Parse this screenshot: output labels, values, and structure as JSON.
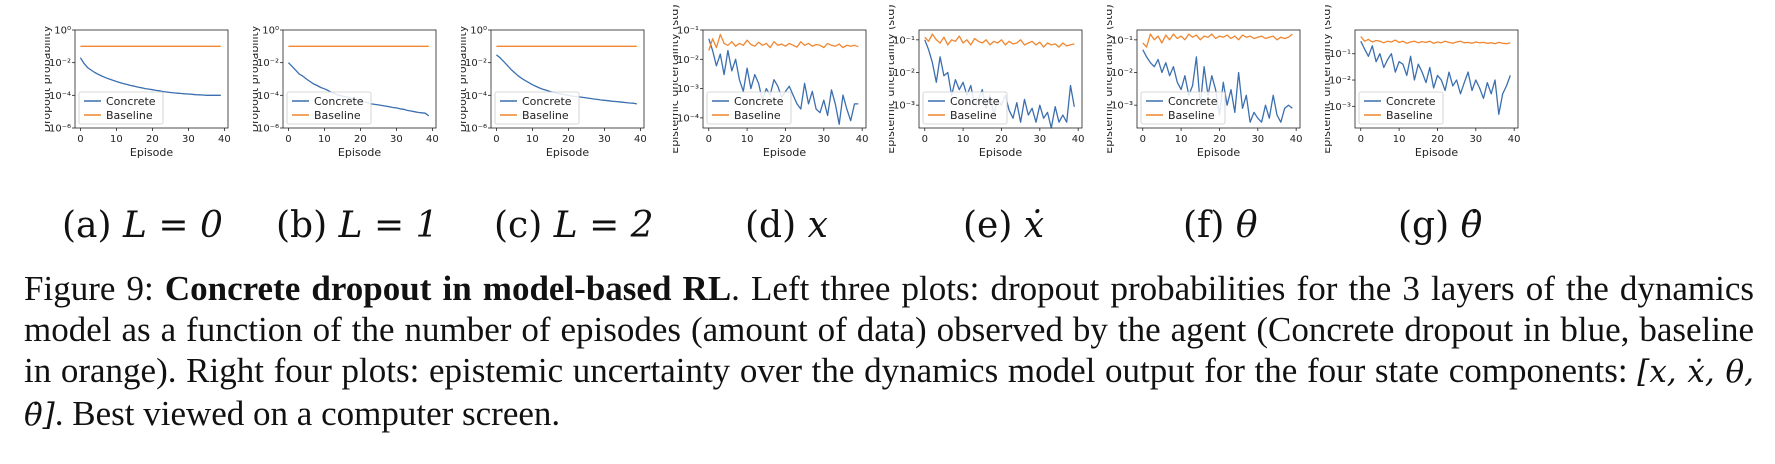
{
  "colors": {
    "concrete": "#3b6fb0",
    "baseline": "#f0862f"
  },
  "legend": {
    "concrete": "Concrete",
    "baseline": "Baseline"
  },
  "chart_data": [
    {
      "id": "a",
      "type": "line",
      "ylabel": "Dropout probability",
      "xlabel": "Episode",
      "yscale": "log",
      "ylim": [
        1e-06,
        1
      ],
      "yticks": [
        -6,
        -4,
        -2,
        0
      ],
      "ytick_labels": [
        "10⁻⁶",
        "10⁻⁴",
        "10⁻²",
        "10⁰"
      ],
      "xlim": [
        -1.5,
        41
      ],
      "xticks": [
        0,
        10,
        20,
        30,
        40
      ],
      "x": [
        0,
        1,
        2,
        3,
        4,
        5,
        6,
        7,
        8,
        9,
        10,
        11,
        12,
        13,
        14,
        15,
        16,
        17,
        18,
        19,
        20,
        21,
        22,
        23,
        24,
        25,
        26,
        27,
        28,
        29,
        30,
        31,
        32,
        33,
        34,
        35,
        36,
        37,
        38,
        39
      ],
      "series": [
        {
          "name": "Concrete",
          "values": [
            0.02,
            0.009,
            0.005,
            0.0035,
            0.0025,
            0.0019,
            0.0015,
            0.0012,
            0.001,
            0.00085,
            0.0007,
            0.0006,
            0.00052,
            0.00046,
            0.0004,
            0.00036,
            0.00032,
            0.00029,
            0.00026,
            0.00024,
            0.00022,
            0.0002,
            0.00019,
            0.00017,
            0.00016,
            0.00015,
            0.00014,
            0.000135,
            0.00013,
            0.000125,
            0.00012,
            0.000115,
            0.00011,
            0.000108,
            0.000105,
            0.0001,
            0.0001,
            0.0001,
            0.0001,
            0.0001
          ]
        },
        {
          "name": "Baseline",
          "values": [
            0.1,
            0.1,
            0.1,
            0.1,
            0.1,
            0.1,
            0.1,
            0.1,
            0.1,
            0.1,
            0.1,
            0.1,
            0.1,
            0.1,
            0.1,
            0.1,
            0.1,
            0.1,
            0.1,
            0.1,
            0.1,
            0.1,
            0.1,
            0.1,
            0.1,
            0.1,
            0.1,
            0.1,
            0.1,
            0.1,
            0.1,
            0.1,
            0.1,
            0.1,
            0.1,
            0.1,
            0.1,
            0.1,
            0.1,
            0.1
          ]
        }
      ]
    },
    {
      "id": "b",
      "type": "line",
      "ylabel": "Dropout probability",
      "xlabel": "Episode",
      "yscale": "log",
      "ylim": [
        1e-06,
        1
      ],
      "yticks": [
        -6,
        -4,
        -2,
        0
      ],
      "ytick_labels": [
        "10⁻⁶",
        "10⁻⁴",
        "10⁻²",
        "10⁰"
      ],
      "xlim": [
        -1.5,
        41
      ],
      "xticks": [
        0,
        10,
        20,
        30,
        40
      ],
      "x": [
        0,
        1,
        2,
        3,
        4,
        5,
        6,
        7,
        8,
        9,
        10,
        11,
        12,
        13,
        14,
        15,
        16,
        17,
        18,
        19,
        20,
        21,
        22,
        23,
        24,
        25,
        26,
        27,
        28,
        29,
        30,
        31,
        32,
        33,
        34,
        35,
        36,
        37,
        38,
        39
      ],
      "series": [
        {
          "name": "Concrete",
          "values": [
            0.01,
            0.006,
            0.0035,
            0.002,
            0.0015,
            0.001,
            0.0007,
            0.0005,
            0.0004,
            0.0003,
            0.00025,
            0.0002,
            0.00015,
            0.00012,
            0.0001,
            9e-05,
            8e-05,
            7e-05,
            6e-05,
            5e-05,
            4.5e-05,
            4e-05,
            3.5e-05,
            3e-05,
            2.8e-05,
            2.6e-05,
            2.4e-05,
            2.2e-05,
            2e-05,
            1.8e-05,
            1.7e-05,
            1.5e-05,
            1.4e-05,
            1.2e-05,
            1.1e-05,
            1e-05,
            9e-06,
            8.5e-06,
            8e-06,
            5.5e-06
          ]
        },
        {
          "name": "Baseline",
          "values": [
            0.1,
            0.1,
            0.1,
            0.1,
            0.1,
            0.1,
            0.1,
            0.1,
            0.1,
            0.1,
            0.1,
            0.1,
            0.1,
            0.1,
            0.1,
            0.1,
            0.1,
            0.1,
            0.1,
            0.1,
            0.1,
            0.1,
            0.1,
            0.1,
            0.1,
            0.1,
            0.1,
            0.1,
            0.1,
            0.1,
            0.1,
            0.1,
            0.1,
            0.1,
            0.1,
            0.1,
            0.1,
            0.1,
            0.1,
            0.1
          ]
        }
      ]
    },
    {
      "id": "c",
      "type": "line",
      "ylabel": "Dropout probability",
      "xlabel": "Episode",
      "yscale": "log",
      "ylim": [
        1e-06,
        1
      ],
      "yticks": [
        -6,
        -4,
        -2,
        0
      ],
      "ytick_labels": [
        "10⁻⁶",
        "10⁻⁴",
        "10⁻²",
        "10⁰"
      ],
      "xlim": [
        -1.5,
        41
      ],
      "xticks": [
        0,
        10,
        20,
        30,
        40
      ],
      "x": [
        0,
        1,
        2,
        3,
        4,
        5,
        6,
        7,
        8,
        9,
        10,
        11,
        12,
        13,
        14,
        15,
        16,
        17,
        18,
        19,
        20,
        21,
        22,
        23,
        24,
        25,
        26,
        27,
        28,
        29,
        30,
        31,
        32,
        33,
        34,
        35,
        36,
        37,
        38,
        39
      ],
      "series": [
        {
          "name": "Concrete",
          "values": [
            0.03,
            0.02,
            0.012,
            0.007,
            0.004,
            0.0025,
            0.0016,
            0.0011,
            0.0008,
            0.0006,
            0.00045,
            0.00035,
            0.00028,
            0.00023,
            0.0002,
            0.00017,
            0.00015,
            0.00013,
            0.00012,
            0.00011,
            0.0001,
            9e-05,
            8.5e-05,
            8e-05,
            7.5e-05,
            7e-05,
            6.5e-05,
            6e-05,
            5.6e-05,
            5.2e-05,
            5e-05,
            4.7e-05,
            4.4e-05,
            4.2e-05,
            4e-05,
            3.8e-05,
            3.6e-05,
            3.4e-05,
            3.3e-05,
            3e-05
          ]
        },
        {
          "name": "Baseline",
          "values": [
            0.1,
            0.1,
            0.1,
            0.1,
            0.1,
            0.1,
            0.1,
            0.1,
            0.1,
            0.1,
            0.1,
            0.1,
            0.1,
            0.1,
            0.1,
            0.1,
            0.1,
            0.1,
            0.1,
            0.1,
            0.1,
            0.1,
            0.1,
            0.1,
            0.1,
            0.1,
            0.1,
            0.1,
            0.1,
            0.1,
            0.1,
            0.1,
            0.1,
            0.1,
            0.1,
            0.1,
            0.1,
            0.1,
            0.1,
            0.1
          ]
        }
      ]
    },
    {
      "id": "d",
      "type": "line",
      "ylabel": "Epistemic uncertainty (std)",
      "xlabel": "Episode",
      "yscale": "log",
      "ylim": [
        4.5e-05,
        0.1
      ],
      "yticks": [
        -4,
        -3,
        -2,
        -1
      ],
      "ytick_labels": [
        "10⁻⁴",
        "10⁻³",
        "10⁻²",
        "10⁻¹"
      ],
      "xlim": [
        -1.5,
        41
      ],
      "xticks": [
        0,
        10,
        20,
        30,
        40
      ],
      "x": [
        0,
        1,
        2,
        3,
        4,
        5,
        6,
        7,
        8,
        9,
        10,
        11,
        12,
        13,
        14,
        15,
        16,
        17,
        18,
        19,
        20,
        21,
        22,
        23,
        24,
        25,
        26,
        27,
        28,
        29,
        30,
        31,
        32,
        33,
        34,
        35,
        36,
        37,
        38,
        39
      ],
      "series": [
        {
          "name": "Concrete",
          "values": [
            0.05,
            0.02,
            0.006,
            0.015,
            0.003,
            0.02,
            0.004,
            0.01,
            0.002,
            0.0008,
            0.005,
            0.001,
            0.003,
            0.0015,
            0.0004,
            0.001,
            0.0006,
            0.002,
            0.0012,
            0.0005,
            0.0008,
            0.0012,
            0.0006,
            0.0003,
            0.0002,
            0.0015,
            0.0003,
            0.0008,
            0.0002,
            0.00015,
            0.0004,
            0.00012,
            0.0009,
            0.0003,
            6e-05,
            0.0006,
            0.0002,
            8e-05,
            0.0003,
            0.0003
          ]
        },
        {
          "name": "Baseline",
          "values": [
            0.02,
            0.05,
            0.025,
            0.07,
            0.035,
            0.03,
            0.04,
            0.028,
            0.035,
            0.03,
            0.045,
            0.032,
            0.028,
            0.038,
            0.03,
            0.035,
            0.025,
            0.04,
            0.03,
            0.033,
            0.028,
            0.035,
            0.03,
            0.026,
            0.04,
            0.03,
            0.035,
            0.028,
            0.032,
            0.03,
            0.025,
            0.035,
            0.03,
            0.028,
            0.033,
            0.025,
            0.03,
            0.028,
            0.03,
            0.027
          ]
        }
      ]
    },
    {
      "id": "e",
      "type": "line",
      "ylabel": "Epistemic uncertainty (std)",
      "xlabel": "Episode",
      "yscale": "log",
      "ylim": [
        0.0002,
        0.2
      ],
      "yticks": [
        -3,
        -2,
        -1
      ],
      "ytick_labels": [
        "10⁻³",
        "10⁻²",
        "10⁻¹"
      ],
      "xlim": [
        -1.5,
        41
      ],
      "xticks": [
        0,
        10,
        20,
        30,
        40
      ],
      "x": [
        0,
        1,
        2,
        3,
        4,
        5,
        6,
        7,
        8,
        9,
        10,
        11,
        12,
        13,
        14,
        15,
        16,
        17,
        18,
        19,
        20,
        21,
        22,
        23,
        24,
        25,
        26,
        27,
        28,
        29,
        30,
        31,
        32,
        33,
        34,
        35,
        36,
        37,
        38,
        39
      ],
      "series": [
        {
          "name": "Concrete",
          "values": [
            0.1,
            0.05,
            0.02,
            0.005,
            0.03,
            0.008,
            0.01,
            0.002,
            0.006,
            0.003,
            0.005,
            0.002,
            0.004,
            0.001,
            0.0015,
            0.003,
            0.0008,
            0.002,
            0.0005,
            0.0015,
            0.001,
            0.002,
            0.0007,
            0.0004,
            0.0012,
            0.0003,
            0.0015,
            0.0005,
            0.0008,
            0.0003,
            0.001,
            0.0004,
            0.0006,
            0.0002,
            0.0009,
            0.0003,
            0.0005,
            0.0003,
            0.004,
            0.0009
          ]
        },
        {
          "name": "Baseline",
          "values": [
            0.12,
            0.09,
            0.15,
            0.1,
            0.08,
            0.12,
            0.07,
            0.1,
            0.09,
            0.13,
            0.08,
            0.1,
            0.07,
            0.11,
            0.09,
            0.08,
            0.1,
            0.07,
            0.09,
            0.08,
            0.1,
            0.07,
            0.09,
            0.075,
            0.08,
            0.1,
            0.07,
            0.08,
            0.09,
            0.07,
            0.085,
            0.06,
            0.08,
            0.07,
            0.075,
            0.06,
            0.08,
            0.065,
            0.07,
            0.075
          ]
        }
      ]
    },
    {
      "id": "f",
      "type": "line",
      "ylabel": "Epistemic uncertainty (std)",
      "xlabel": "Episode",
      "yscale": "log",
      "ylim": [
        0.0002,
        0.2
      ],
      "yticks": [
        -3,
        -2,
        -1
      ],
      "ytick_labels": [
        "10⁻³",
        "10⁻²",
        "10⁻¹"
      ],
      "xlim": [
        -1.5,
        41
      ],
      "xticks": [
        0,
        10,
        20,
        30,
        40
      ],
      "x": [
        0,
        1,
        2,
        3,
        4,
        5,
        6,
        7,
        8,
        9,
        10,
        11,
        12,
        13,
        14,
        15,
        16,
        17,
        18,
        19,
        20,
        21,
        22,
        23,
        24,
        25,
        26,
        27,
        28,
        29,
        30,
        31,
        32,
        33,
        34,
        35,
        36,
        37,
        38,
        39
      ],
      "series": [
        {
          "name": "Concrete",
          "values": [
            0.05,
            0.03,
            0.02,
            0.015,
            0.025,
            0.01,
            0.02,
            0.008,
            0.015,
            0.005,
            0.003,
            0.008,
            0.002,
            0.004,
            0.03,
            0.001,
            0.015,
            0.002,
            0.008,
            0.003,
            0.0005,
            0.005,
            0.001,
            0.003,
            0.0006,
            0.01,
            0.0008,
            0.002,
            0.0003,
            0.0006,
            0.0004,
            0.0003,
            0.001,
            0.0004,
            0.002,
            0.0005,
            0.0003,
            0.0008,
            0.001,
            0.0008
          ]
        },
        {
          "name": "Baseline",
          "values": [
            0.08,
            0.06,
            0.15,
            0.1,
            0.13,
            0.08,
            0.14,
            0.1,
            0.15,
            0.11,
            0.13,
            0.1,
            0.15,
            0.12,
            0.14,
            0.1,
            0.13,
            0.12,
            0.15,
            0.11,
            0.13,
            0.12,
            0.14,
            0.11,
            0.13,
            0.1,
            0.14,
            0.12,
            0.13,
            0.11,
            0.12,
            0.13,
            0.11,
            0.12,
            0.13,
            0.1,
            0.12,
            0.11,
            0.12,
            0.15
          ]
        }
      ]
    },
    {
      "id": "g",
      "type": "line",
      "ylabel": "Epistemic uncertainty (std)",
      "xlabel": "Episode",
      "yscale": "log",
      "ylim": [
        0.00015,
        0.8
      ],
      "yticks": [
        -3,
        -2,
        -1
      ],
      "ytick_labels": [
        "10⁻³",
        "10⁻²",
        "10⁻¹"
      ],
      "xlim": [
        -1.5,
        41
      ],
      "xticks": [
        0,
        10,
        20,
        30,
        40
      ],
      "x": [
        0,
        1,
        2,
        3,
        4,
        5,
        6,
        7,
        8,
        9,
        10,
        11,
        12,
        13,
        14,
        15,
        16,
        17,
        18,
        19,
        20,
        21,
        22,
        23,
        24,
        25,
        26,
        27,
        28,
        29,
        30,
        31,
        32,
        33,
        34,
        35,
        36,
        37,
        38,
        39
      ],
      "series": [
        {
          "name": "Concrete",
          "values": [
            0.3,
            0.15,
            0.08,
            0.2,
            0.05,
            0.1,
            0.03,
            0.06,
            0.1,
            0.02,
            0.05,
            0.04,
            0.015,
            0.08,
            0.01,
            0.04,
            0.02,
            0.008,
            0.03,
            0.005,
            0.015,
            0.01,
            0.004,
            0.02,
            0.006,
            0.01,
            0.003,
            0.008,
            0.02,
            0.004,
            0.01,
            0.005,
            0.002,
            0.008,
            0.003,
            0.01,
            0.0005,
            0.003,
            0.006,
            0.015
          ]
        },
        {
          "name": "Baseline",
          "values": [
            0.45,
            0.3,
            0.35,
            0.28,
            0.32,
            0.3,
            0.26,
            0.3,
            0.28,
            0.33,
            0.27,
            0.3,
            0.25,
            0.28,
            0.3,
            0.26,
            0.29,
            0.27,
            0.3,
            0.25,
            0.28,
            0.26,
            0.3,
            0.27,
            0.25,
            0.28,
            0.3,
            0.26,
            0.27,
            0.25,
            0.28,
            0.26,
            0.27,
            0.25,
            0.26,
            0.24,
            0.27,
            0.25,
            0.24,
            0.26
          ]
        }
      ]
    }
  ],
  "subcaptions": [
    {
      "label": "(a)",
      "math": "L = 0"
    },
    {
      "label": "(b)",
      "math": "L = 1"
    },
    {
      "label": "(c)",
      "math": "L = 2"
    },
    {
      "label": "(d)",
      "math": "x"
    },
    {
      "label": "(e)",
      "math": "ẋ"
    },
    {
      "label": "(f)",
      "math": "θ"
    },
    {
      "label": "(g)",
      "math": "θ̇"
    }
  ],
  "caption": {
    "figure_label": "Figure 9:",
    "bold_title": "Concrete dropout in model-based RL",
    "text_1": ". Left three plots: dropout probabilities for the 3 layers of the dynamics model as a function of the number of episodes (amount of data) observed by the agent (Concrete dropout in blue, baseline in orange). Right four plots: epistemic uncertainty over the dynamics model output for the four state components: ",
    "math": "[x, ẋ, θ, θ̇]",
    "text_2": ". Best viewed on a computer screen."
  }
}
